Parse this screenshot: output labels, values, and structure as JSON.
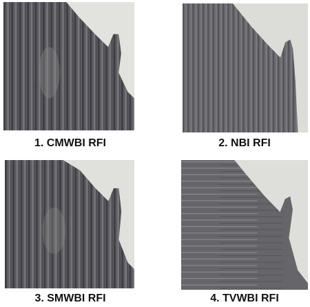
{
  "panels": [
    {
      "label": "1. CMWBI RFI"
    },
    {
      "label": "2. NBI RFI"
    },
    {
      "label": "3. SMWBI RFI"
    },
    {
      "label": "4. TVWBI RFI"
    }
  ]
}
